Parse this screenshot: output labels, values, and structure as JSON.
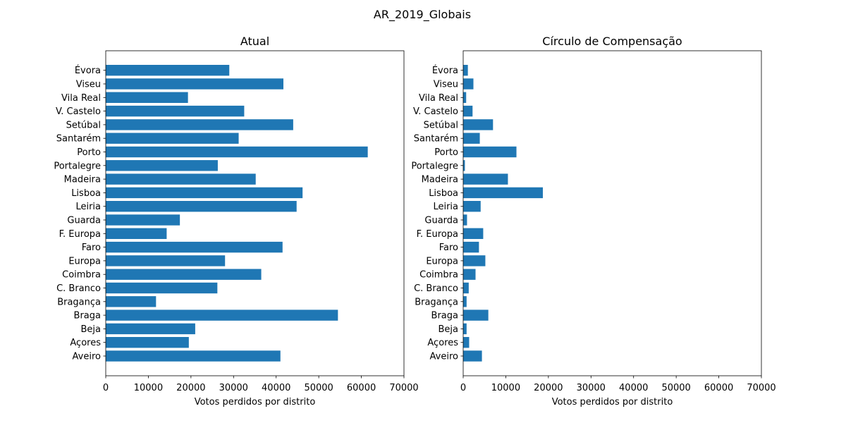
{
  "figure": {
    "title": "AR_2019_Globais"
  },
  "chart_data": [
    {
      "type": "bar",
      "orientation": "horizontal",
      "title": "Atual",
      "xlabel": "Votos perdidos por distrito",
      "ylabel": "",
      "xlim": [
        0,
        70000
      ],
      "xticks": [
        0,
        10000,
        20000,
        30000,
        40000,
        50000,
        60000,
        70000
      ],
      "grid": false,
      "bar_color": "#1f77b4",
      "categories": [
        "Aveiro",
        "Açores",
        "Beja",
        "Braga",
        "Bragança",
        "C. Branco",
        "Coimbra",
        "Europa",
        "Faro",
        "F. Europa",
        "Guarda",
        "Leiria",
        "Lisboa",
        "Madeira",
        "Portalegre",
        "Porto",
        "Santarém",
        "Setúbal",
        "V. Castelo",
        "Vila Real",
        "Viseu",
        "Évora"
      ],
      "values": [
        41000,
        19500,
        21000,
        54500,
        11800,
        26200,
        36500,
        28000,
        41500,
        14300,
        17400,
        44800,
        46200,
        35200,
        26300,
        61500,
        31200,
        44000,
        32500,
        19300,
        41700,
        29000
      ]
    },
    {
      "type": "bar",
      "orientation": "horizontal",
      "title": "Círculo de Compensação",
      "xlabel": "Votos perdidos por distrito",
      "ylabel": "",
      "xlim": [
        0,
        70000
      ],
      "xticks": [
        0,
        10000,
        20000,
        30000,
        40000,
        50000,
        60000,
        70000
      ],
      "grid": false,
      "bar_color": "#1f77b4",
      "categories": [
        "Aveiro",
        "Açores",
        "Beja",
        "Braga",
        "Bragança",
        "C. Branco",
        "Coimbra",
        "Europa",
        "Faro",
        "F. Europa",
        "Guarda",
        "Leiria",
        "Lisboa",
        "Madeira",
        "Portalegre",
        "Porto",
        "Santarém",
        "Setúbal",
        "V. Castelo",
        "Vila Real",
        "Viseu",
        "Évora"
      ],
      "values": [
        4400,
        1400,
        800,
        5900,
        800,
        1300,
        2900,
        5200,
        3700,
        4700,
        900,
        4100,
        18700,
        10500,
        400,
        12500,
        3900,
        7000,
        2200,
        700,
        2400,
        1100
      ]
    }
  ]
}
